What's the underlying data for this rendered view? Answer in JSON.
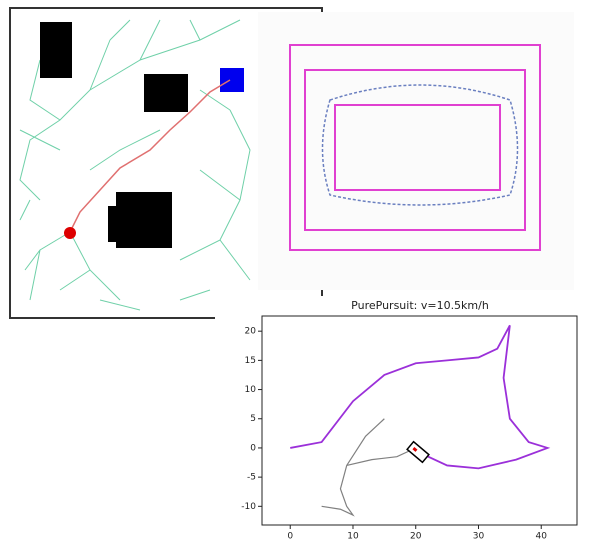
{
  "chart_data": {
    "type": "line",
    "title": "PurePursuit: v=10.5km/h",
    "xlim": [
      -4.5,
      45.7
    ],
    "ylim": [
      -13.2,
      22.6
    ],
    "xticks": [
      0,
      10,
      20,
      30,
      40
    ],
    "yticks": [
      -10,
      -5,
      0,
      5,
      10,
      15,
      20
    ],
    "series": [
      {
        "color": "#9b30d9",
        "x": [
          0,
          5,
          10,
          15,
          20,
          25,
          30,
          33,
          35,
          34,
          35,
          38,
          41,
          36,
          30,
          25,
          22,
          20
        ],
        "values": [
          0,
          1,
          8,
          12.5,
          14.5,
          15,
          15.5,
          17,
          21,
          12,
          5,
          1,
          0,
          -2,
          -3.5,
          -3,
          -1.5,
          0
        ]
      },
      {
        "color": "#808080",
        "x": [
          15,
          12,
          9,
          8,
          9,
          10,
          8,
          5,
          null,
          9,
          13,
          17,
          19
        ],
        "values": [
          5,
          2,
          -3,
          -7,
          -10,
          -11.5,
          -10.5,
          -10,
          null,
          -3,
          -2,
          -1.5,
          -0.5
        ]
      }
    ]
  }
}
